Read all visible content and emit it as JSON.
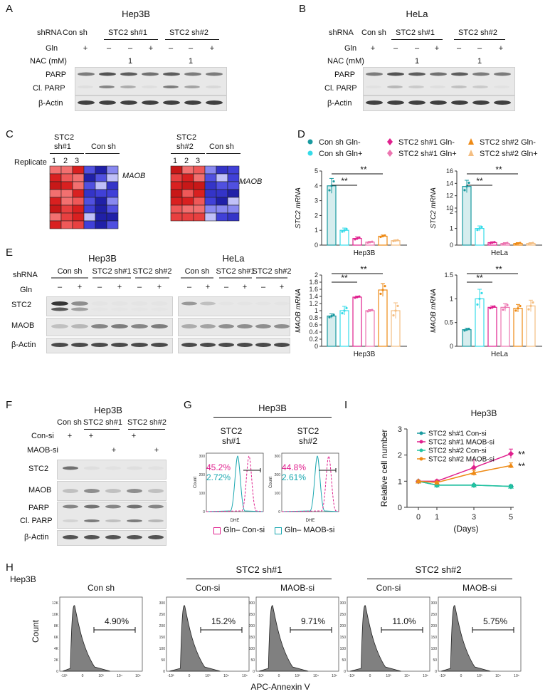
{
  "panels": {
    "A": {
      "label": "A",
      "title": "Hep3B",
      "row_shrna": "shRNA",
      "row_gln": "Gln",
      "row_nac": "NAC (mM)",
      "groups": [
        "Con sh",
        "STC2 sh#1",
        "STC2 sh#2"
      ],
      "gln": [
        "+",
        "–",
        "–",
        "+",
        "–",
        "–",
        "+"
      ],
      "nac": [
        "",
        "",
        "1",
        "",
        "",
        "1",
        ""
      ],
      "blots": [
        "PARP",
        "Cl. PARP",
        "β-Actin"
      ]
    },
    "B": {
      "label": "B",
      "title": "HeLa",
      "row_shrna": "shRNA",
      "row_gln": "Gln",
      "row_nac": "NAC (mM)",
      "groups": [
        "Con sh",
        "STC2 sh#1",
        "STC2 sh#2"
      ],
      "gln": [
        "+",
        "–",
        "–",
        "+",
        "–",
        "–",
        "+"
      ],
      "nac": [
        "",
        "",
        "1",
        "",
        "",
        "1",
        ""
      ],
      "blots": [
        "PARP",
        "Cl. PARP",
        "β-Actin"
      ]
    },
    "C": {
      "label": "C",
      "left": {
        "group1a": "STC2",
        "group1b": "sh#1",
        "group2": "Con sh",
        "gene": "MAOB"
      },
      "right": {
        "group1a": "STC2",
        "group1b": "sh#2",
        "group2": "Con sh",
        "gene": "MAOB"
      },
      "replicate_label": "Replicate",
      "replicates": [
        "1",
        "2",
        "3"
      ]
    },
    "D": {
      "label": "D",
      "legend": [
        "Con sh Gln-",
        "Con sh Gln+",
        "STC2 sh#1 Gln-",
        "STC2 sh#1 Gln+",
        "STC2 sh#2 Gln-",
        "STC2 sh#2 Gln+"
      ],
      "sig": "**"
    },
    "E": {
      "label": "E",
      "title_left": "Hep3B",
      "title_right": "HeLa",
      "row_shrna": "shRNA",
      "row_gln": "Gln",
      "groups": [
        "Con sh",
        "STC2 sh#1",
        "STC2 sh#2"
      ],
      "gln": [
        "–",
        "+",
        "–",
        "+",
        "–",
        "+"
      ],
      "blots": [
        "STC2",
        "MAOB",
        "β-Actin"
      ]
    },
    "F": {
      "label": "F",
      "title": "Hep3B",
      "groups": [
        "Con sh",
        "STC2 sh#1",
        "STC2 sh#2"
      ],
      "row_consi": "Con-si",
      "row_maobsi": "MAOB-si",
      "consi": [
        "+",
        "+",
        "",
        "+",
        ""
      ],
      "maobsi": [
        "",
        "",
        "+",
        "",
        "+"
      ],
      "blots": [
        "STC2",
        "MAOB",
        "PARP",
        "Cl. PARP",
        "β-Actin"
      ]
    },
    "G": {
      "label": "G",
      "title": "Hep3B",
      "left": {
        "t1": "STC2",
        "t2": "sh#1",
        "pct_red": "45.2%",
        "pct_cyan": "2.72%"
      },
      "right": {
        "t1": "STC2",
        "t2": "sh#2",
        "pct_red": "44.8%",
        "pct_cyan": "2.61%"
      },
      "axis_x": "DHE",
      "axis_y": "Count",
      "legend_a": "Gln– Con-si",
      "legend_b": "Gln– MAOB-si"
    },
    "H": {
      "label": "H",
      "cell": "Hep3B",
      "group_a": "STC2 sh#1",
      "group_b": "STC2 sh#2",
      "hist": [
        {
          "title": "Con sh",
          "pct": "4.90%"
        },
        {
          "title": "Con-si",
          "pct": "15.2%"
        },
        {
          "title": "MAOB-si",
          "pct": "9.71%"
        },
        {
          "title": "Con-si",
          "pct": "11.0%"
        },
        {
          "title": "MAOB-si",
          "pct": "5.75%"
        }
      ],
      "ylabel": "Count",
      "xlabel": "APC-Annexin V"
    },
    "I": {
      "label": "I",
      "title": "Hep3B",
      "sig": "**"
    }
  },
  "chart_data": [
    {
      "type": "bar",
      "id": "stc2-hep3b",
      "ylabel": "STC2 mRNA",
      "xlabel": "Hep3B",
      "ylim": [
        0,
        5
      ],
      "yticks": [
        0,
        1,
        2,
        3,
        4,
        5
      ],
      "categories": [
        "Con sh Gln-",
        "Con sh Gln+",
        "STC2 sh#1 Gln-",
        "STC2 sh#1 Gln+",
        "STC2 sh#2 Gln-",
        "STC2 sh#2 Gln+"
      ],
      "values": [
        4.0,
        1.0,
        0.45,
        0.2,
        0.6,
        0.3
      ],
      "errors": [
        0.5,
        0.15,
        0.1,
        0.05,
        0.08,
        0.05
      ],
      "colors": [
        "#1a9aa0",
        "#35dbe8",
        "#e0208e",
        "#ec75b0",
        "#ee8a15",
        "#f4be82"
      ]
    },
    {
      "type": "bar",
      "id": "stc2-hela",
      "ylabel": "STC2 mRNA",
      "xlabel": "HeLa",
      "ylim": [
        0,
        16
      ],
      "yticks": [
        0,
        1,
        2,
        10,
        12,
        14,
        16
      ],
      "categories": [
        "Con sh Gln-",
        "Con sh Gln+",
        "STC2 sh#1 Gln-",
        "STC2 sh#1 Gln+",
        "STC2 sh#2 Gln-",
        "STC2 sh#2 Gln+"
      ],
      "values": [
        13.5,
        1.0,
        0.15,
        0.1,
        0.1,
        0.1
      ],
      "errors": [
        1.0,
        0.15,
        0.05,
        0.05,
        0.05,
        0.05
      ],
      "colors": [
        "#1a9aa0",
        "#35dbe8",
        "#e0208e",
        "#ec75b0",
        "#ee8a15",
        "#f4be82"
      ]
    },
    {
      "type": "bar",
      "id": "maob-hep3b",
      "ylabel": "MAOB mRNA",
      "xlabel": "Hep3B",
      "ylim": [
        0,
        2.0
      ],
      "yticks": [
        0,
        0.2,
        0.4,
        0.6,
        0.8,
        1.0,
        1.2,
        1.4,
        1.6,
        1.8,
        2.0
      ],
      "categories": [
        "Con sh Gln-",
        "Con sh Gln+",
        "STC2 sh#1 Gln-",
        "STC2 sh#1 Gln+",
        "STC2 sh#2 Gln-",
        "STC2 sh#2 Gln+"
      ],
      "values": [
        0.85,
        1.0,
        1.38,
        1.0,
        1.58,
        1.0
      ],
      "errors": [
        0.06,
        0.12,
        0.03,
        0.03,
        0.18,
        0.22
      ],
      "colors": [
        "#1a9aa0",
        "#35dbe8",
        "#e0208e",
        "#ec75b0",
        "#ee8a15",
        "#f4be82"
      ]
    },
    {
      "type": "bar",
      "id": "maob-hela",
      "ylabel": "MAOB mRNA",
      "xlabel": "HeLa",
      "ylim": [
        0,
        1.5
      ],
      "yticks": [
        0.0,
        0.5,
        1.0,
        1.5
      ],
      "categories": [
        "Con sh Gln-",
        "Con sh Gln+",
        "STC2 sh#1 Gln-",
        "STC2 sh#1 Gln+",
        "STC2 sh#2 Gln-",
        "STC2 sh#2 Gln+"
      ],
      "values": [
        0.35,
        1.0,
        0.82,
        0.82,
        0.8,
        0.85
      ],
      "errors": [
        0.03,
        0.2,
        0.03,
        0.08,
        0.08,
        0.12
      ],
      "colors": [
        "#1a9aa0",
        "#35dbe8",
        "#e0208e",
        "#ec75b0",
        "#ee8a15",
        "#f4be82"
      ]
    },
    {
      "type": "line",
      "id": "cell-number",
      "title": "Hep3B",
      "ylabel": "Relative cell number",
      "xlabel": "(Days)",
      "x": [
        0,
        1,
        3,
        5
      ],
      "ylim": [
        0,
        3
      ],
      "yticks": [
        0,
        1,
        2,
        3
      ],
      "series": [
        {
          "name": "STC2 sh#1 Con-si",
          "values": [
            1.0,
            0.85,
            0.85,
            0.8
          ],
          "errors": [
            0.03,
            0.03,
            0.03,
            0.05
          ],
          "color": "#1a9aa0",
          "marker": "diamond"
        },
        {
          "name": "STC2 sh#1 MAOB-si",
          "values": [
            1.0,
            1.0,
            1.52,
            2.05
          ],
          "errors": [
            0.03,
            0.05,
            0.3,
            0.18
          ],
          "color": "#e0208e",
          "marker": "diamond"
        },
        {
          "name": "STC2 sh#2 Con-si",
          "values": [
            1.0,
            0.85,
            0.85,
            0.8
          ],
          "errors": [
            0.03,
            0.03,
            0.03,
            0.06
          ],
          "color": "#22c3a0",
          "marker": "triangle"
        },
        {
          "name": "STC2 sh#2 MAOB-si",
          "values": [
            1.0,
            0.95,
            1.32,
            1.6
          ],
          "errors": [
            0.03,
            0.05,
            0.1,
            0.1
          ],
          "color": "#ee8a15",
          "marker": "triangle"
        }
      ]
    }
  ]
}
